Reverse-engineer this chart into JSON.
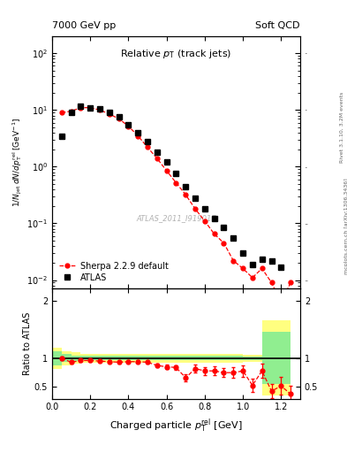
{
  "title_top_left": "7000 GeV pp",
  "title_top_right": "Soft QCD",
  "plot_title": "Relative p_{T} (track jets)",
  "xlabel": "Charged particle p_{T}^{rel} [GeV]",
  "ylabel_main": "1/N_{jet} dN/dp_{T}^{rel} [GeV^{-1}]",
  "ylabel_ratio": "Ratio to ATLAS",
  "right_label": "Rivet 3.1.10, 3.2M events",
  "right_label2": "mcplots.cern.ch [arXiv:1306.3436]",
  "watermark": "ATLAS_2011_I919017",
  "atlas_x": [
    0.05,
    0.1,
    0.15,
    0.2,
    0.25,
    0.3,
    0.35,
    0.4,
    0.45,
    0.5,
    0.55,
    0.6,
    0.65,
    0.7,
    0.75,
    0.8,
    0.85,
    0.9,
    0.95,
    1.0,
    1.05,
    1.1,
    1.15,
    1.2
  ],
  "atlas_y": [
    3.5,
    9.0,
    11.5,
    11.0,
    10.5,
    9.0,
    7.5,
    5.5,
    4.0,
    2.8,
    1.8,
    1.2,
    0.75,
    0.45,
    0.28,
    0.18,
    0.12,
    0.085,
    0.055,
    0.03,
    0.019,
    0.023,
    0.022,
    0.017
  ],
  "sherpa_x": [
    0.05,
    0.1,
    0.15,
    0.2,
    0.25,
    0.3,
    0.35,
    0.4,
    0.45,
    0.5,
    0.55,
    0.6,
    0.65,
    0.7,
    0.75,
    0.8,
    0.85,
    0.9,
    0.95,
    1.0,
    1.05,
    1.1,
    1.15,
    1.2,
    1.25
  ],
  "sherpa_y": [
    9.0,
    9.5,
    11.0,
    11.0,
    10.0,
    8.5,
    7.0,
    5.2,
    3.5,
    2.2,
    1.4,
    0.85,
    0.52,
    0.32,
    0.18,
    0.11,
    0.065,
    0.045,
    0.022,
    0.016,
    0.011,
    0.016,
    0.009,
    0.004,
    0.009
  ],
  "ratio_x": [
    0.05,
    0.1,
    0.15,
    0.2,
    0.25,
    0.3,
    0.35,
    0.4,
    0.45,
    0.5,
    0.55,
    0.6,
    0.65,
    0.7,
    0.75,
    0.8,
    0.85,
    0.9,
    0.95,
    1.0,
    1.05,
    1.1,
    1.15,
    1.2,
    1.25
  ],
  "ratio_y": [
    1.0,
    0.93,
    0.96,
    0.96,
    0.95,
    0.94,
    0.93,
    0.94,
    0.94,
    0.93,
    0.875,
    0.85,
    0.84,
    0.66,
    0.82,
    0.78,
    0.78,
    0.75,
    0.75,
    0.78,
    0.53,
    0.78,
    0.43,
    0.52,
    0.38
  ],
  "ratio_yerr": [
    0.03,
    0.025,
    0.02,
    0.02,
    0.02,
    0.02,
    0.02,
    0.02,
    0.02,
    0.025,
    0.03,
    0.035,
    0.04,
    0.06,
    0.07,
    0.07,
    0.08,
    0.08,
    0.09,
    0.1,
    0.12,
    0.12,
    0.12,
    0.15,
    0.15
  ],
  "band_bins": [
    0.0,
    0.05,
    0.1,
    0.15,
    0.2,
    0.25,
    0.3,
    0.35,
    0.4,
    0.45,
    0.5,
    0.55,
    0.6,
    0.65,
    0.7,
    0.75,
    0.8,
    0.85,
    0.9,
    0.95,
    1.0,
    1.1,
    1.25
  ],
  "band_green_low": [
    0.88,
    0.93,
    0.95,
    0.96,
    0.96,
    0.96,
    0.96,
    0.96,
    0.96,
    0.96,
    0.96,
    0.96,
    0.96,
    0.96,
    0.96,
    0.96,
    0.96,
    0.96,
    0.96,
    0.96,
    0.97,
    0.55
  ],
  "band_green_high": [
    1.12,
    1.07,
    1.05,
    1.04,
    1.04,
    1.04,
    1.04,
    1.04,
    1.04,
    1.04,
    1.04,
    1.04,
    1.04,
    1.04,
    1.04,
    1.04,
    1.04,
    1.04,
    1.04,
    1.04,
    1.03,
    1.45
  ],
  "band_yellow_low": [
    0.82,
    0.88,
    0.9,
    0.92,
    0.92,
    0.92,
    0.92,
    0.92,
    0.92,
    0.92,
    0.92,
    0.92,
    0.92,
    0.92,
    0.92,
    0.92,
    0.92,
    0.92,
    0.92,
    0.92,
    0.94,
    0.35
  ],
  "band_yellow_high": [
    1.18,
    1.12,
    1.1,
    1.08,
    1.08,
    1.08,
    1.08,
    1.08,
    1.08,
    1.08,
    1.08,
    1.08,
    1.08,
    1.08,
    1.08,
    1.08,
    1.08,
    1.08,
    1.08,
    1.08,
    1.06,
    1.65
  ],
  "xlim": [
    0.0,
    1.3
  ],
  "ylim_main": [
    0.007,
    200
  ],
  "ylim_ratio": [
    0.3,
    2.2
  ],
  "yticks_ratio": [
    0.5,
    1.0,
    2.0
  ],
  "ytick_labels_ratio": [
    "0.5",
    "1",
    "2"
  ],
  "color_atlas": "black",
  "color_sherpa": "red",
  "color_band_green": "#90EE90",
  "color_band_yellow": "#FFFF80",
  "color_band_green_edge": "#70CC70",
  "color_band_yellow_edge": "#DDDD50"
}
